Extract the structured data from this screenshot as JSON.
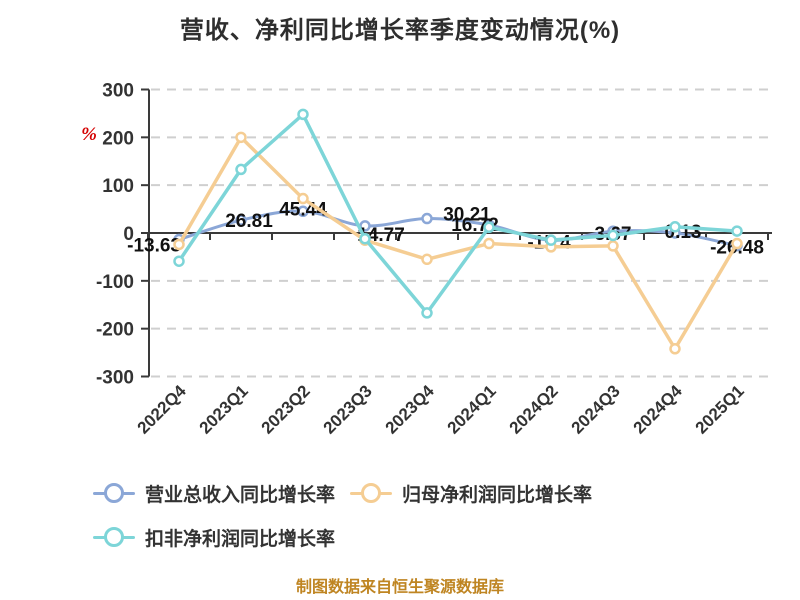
{
  "title": "营收、净利同比增长率季度变动情况(%)",
  "y_axis_unit": "%",
  "footer": "制图数据来自恒生聚源数据库",
  "colors": {
    "unit_red": "#d40000",
    "footer_gold": "#bf8522",
    "axis": "#3a3a3a",
    "grid": "#cfcfcf",
    "tick_label": "#333333",
    "data_label": "#111111"
  },
  "chart_data": {
    "type": "line",
    "title": "营收、净利同比增长率季度变动情况(%)",
    "categories": [
      "2022Q4",
      "2023Q1",
      "2023Q2",
      "2023Q3",
      "2023Q4",
      "2024Q1",
      "2024Q2",
      "2024Q3",
      "2024Q4",
      "2025Q1"
    ],
    "series": [
      {
        "name": "营业总收入同比增长率",
        "color": "#8ba7d7",
        "smooth": true,
        "labeled": true,
        "values": [
          -13.63,
          26.81,
          45.44,
          14.77,
          30.21,
          16.72,
          -15.4,
          3.67,
          0.13,
          -26.48
        ]
      },
      {
        "name": "归母净利润同比增长率",
        "color": "#f5cd93",
        "smooth": false,
        "labeled": false,
        "values": [
          -24,
          200,
          72,
          -15,
          -55,
          -22,
          -29,
          -27,
          -242,
          -22
        ]
      },
      {
        "name": "扣非净利润同比增长率",
        "color": "#7dd5d8",
        "smooth": false,
        "labeled": false,
        "values": [
          -59,
          133,
          248,
          -12,
          -167,
          12,
          -15,
          -5,
          13,
          4
        ]
      }
    ],
    "ylim": [
      -300,
      300
    ],
    "yticks": [
      300,
      200,
      100,
      0,
      -100,
      -200,
      -300
    ],
    "grid": "dashed horizontal",
    "legend_position": "bottom-left"
  }
}
